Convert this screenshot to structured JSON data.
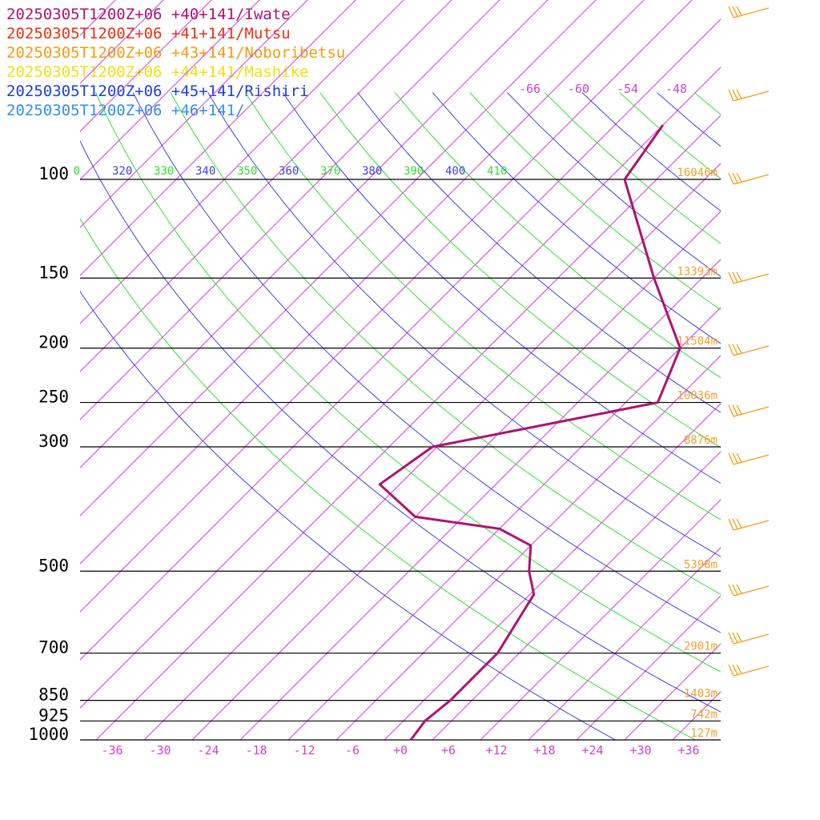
{
  "legend": [
    {
      "label": "20250305T1200Z+06 +40+141/Iwate",
      "color": "#b0126e"
    },
    {
      "label": "20250305T1200Z+06 +41+141/Mutsu",
      "color": "#f03010"
    },
    {
      "label": "20250305T1200Z+06 +43+141/Noboribetsu",
      "color": "#f89a10"
    },
    {
      "label": "20250305T1200Z+06 +44+141/Mashike",
      "color": "#f0e010"
    },
    {
      "label": "20250305T1200Z+06 +45+141/Rishiri",
      "color": "#1a40e0"
    },
    {
      "label": "20250305T1200Z+06 +46+141/",
      "color": "#3090f0"
    }
  ],
  "chart_data": {
    "type": "line",
    "x_ticks": [
      "-36",
      "-30",
      "-24",
      "-18",
      "-12",
      "-6",
      "+0",
      "+6",
      "+12",
      "+18",
      "+24",
      "+30",
      "+36"
    ],
    "x_values": [
      -36,
      -30,
      -24,
      -18,
      -12,
      -6,
      0,
      6,
      12,
      18,
      24,
      30,
      36
    ],
    "pressure_levels": [
      {
        "p": 100,
        "label": "100",
        "height": "16046m"
      },
      {
        "p": 150,
        "label": "150",
        "height": "13393m"
      },
      {
        "p": 200,
        "label": "200",
        "height": "11504m"
      },
      {
        "p": 250,
        "label": "250",
        "height": "10036m"
      },
      {
        "p": 300,
        "label": "300",
        "height": "8876m"
      },
      {
        "p": 500,
        "label": "500",
        "height": "5398m"
      },
      {
        "p": 700,
        "label": "700",
        "height": "2901m"
      },
      {
        "p": 850,
        "label": "850",
        "height": "1403m"
      },
      {
        "p": 925,
        "label": "925",
        "height": "742m"
      },
      {
        "p": 1000,
        "label": "1000",
        "height": "127m"
      }
    ],
    "theta_labels": [
      {
        "value": "0",
        "color": "#30e030"
      },
      {
        "value": "320",
        "color": "#4040e0"
      },
      {
        "value": "330",
        "color": "#30e030"
      },
      {
        "value": "340",
        "color": "#4040e0"
      },
      {
        "value": "350",
        "color": "#30e030"
      },
      {
        "value": "360",
        "color": "#4040e0"
      },
      {
        "value": "370",
        "color": "#30e030"
      },
      {
        "value": "380",
        "color": "#4040e0"
      },
      {
        "value": "390",
        "color": "#30e030"
      },
      {
        "value": "400",
        "color": "#4040e0"
      },
      {
        "value": "410",
        "color": "#30e030"
      }
    ],
    "upper_labels": [
      "-66",
      "-60",
      "-54",
      "-48"
    ],
    "series": [
      {
        "name": "20250305T1200Z+06 +40+141/Iwate",
        "color": "#b0126e",
        "points": [
          {
            "p": 1000,
            "t": 1.3
          },
          {
            "p": 925,
            "t": 0.7
          },
          {
            "p": 850,
            "t": 1.3
          },
          {
            "p": 700,
            "t": 1.3
          },
          {
            "p": 550,
            "t": -1.5
          },
          {
            "p": 500,
            "t": -5
          },
          {
            "p": 450,
            "t": -8
          },
          {
            "p": 420,
            "t": -14
          },
          {
            "p": 400,
            "t": -26
          },
          {
            "p": 350,
            "t": -34.5
          },
          {
            "p": 300,
            "t": -32.6
          },
          {
            "p": 250,
            "t": -10
          },
          {
            "p": 200,
            "t": -14
          },
          {
            "p": 150,
            "t": -26
          },
          {
            "p": 100,
            "t": -42
          },
          {
            "p": 80,
            "t": -44
          }
        ]
      },
      {
        "name": "20250305T1200Z+06 +41+141/Mutsu",
        "color": "#f03010"
      },
      {
        "name": "20250305T1200Z+06 +43+141/Noboribetsu",
        "color": "#f89a10"
      },
      {
        "name": "20250305T1200Z+06 +44+141/Mashike",
        "color": "#f0e010"
      },
      {
        "name": "20250305T1200Z+06 +45+141/Rishiri",
        "color": "#1a40e0"
      },
      {
        "name": "20250305T1200Z+06 +46+141/",
        "color": "#3090f0"
      }
    ]
  }
}
